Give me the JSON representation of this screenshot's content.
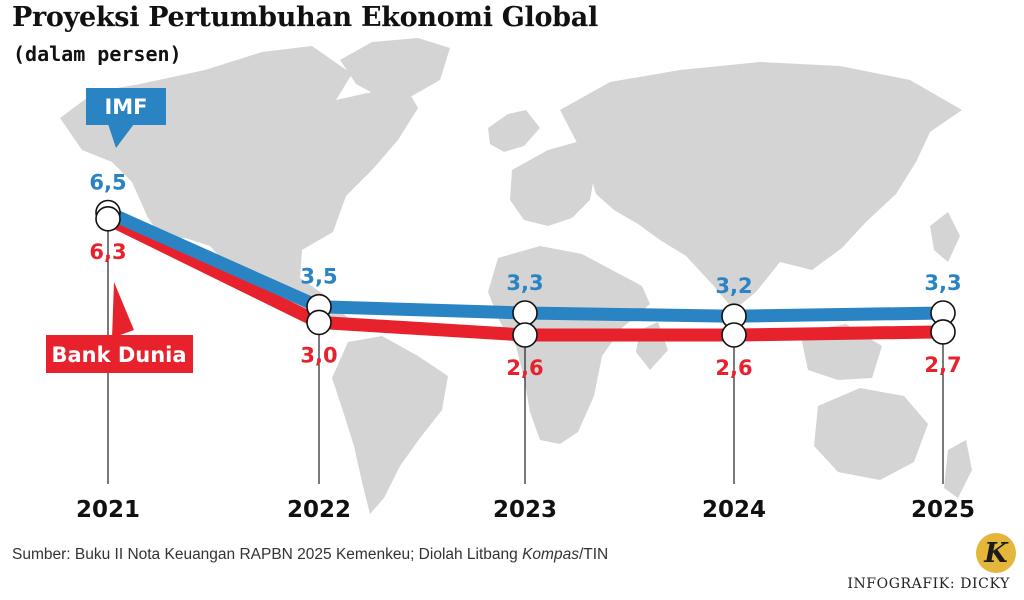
{
  "header": {
    "title": "Proyeksi Pertumbuhan Ekonomi Global",
    "subtitle": "(dalam persen)"
  },
  "footer": {
    "source_prefix": "Sumber: Buku II Nota Keuangan RAPBN 2025 Kemenkeu; Diolah Litbang ",
    "source_italic": "Kompas",
    "source_suffix": "/TIN",
    "credit": "INFOGRAFIK: DICKY",
    "logo_letter": "K"
  },
  "colors": {
    "imf": "#2a84c3",
    "bank_dunia": "#e8222c",
    "map": "#d4d4d4",
    "marker_fill": "#ffffff",
    "marker_stroke": "#111111"
  },
  "chart_data": {
    "type": "line",
    "title": "Proyeksi Pertumbuhan Ekonomi Global",
    "subtitle": "(dalam persen)",
    "x": [
      "2021",
      "2022",
      "2023",
      "2024",
      "2025"
    ],
    "series": [
      {
        "name": "IMF",
        "values": [
          6.5,
          3.5,
          3.3,
          3.2,
          3.3
        ],
        "labels": [
          "6,5",
          "3,5",
          "3,3",
          "3,2",
          "3,3"
        ],
        "color": "#2a84c3"
      },
      {
        "name": "Bank Dunia",
        "values": [
          6.3,
          3.0,
          2.6,
          2.6,
          2.7
        ],
        "labels": [
          "6,3",
          "3,0",
          "2,6",
          "2,6",
          "2,7"
        ],
        "color": "#e8222c"
      }
    ],
    "legend": "callout labels",
    "grid": false,
    "background": "world map"
  }
}
